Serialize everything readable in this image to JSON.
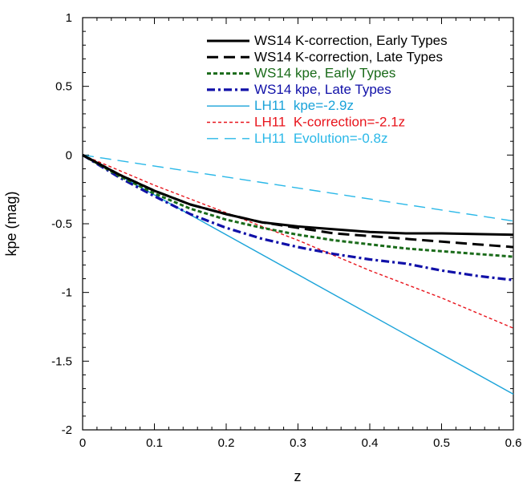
{
  "chart_data": {
    "type": "line",
    "title": "",
    "xlabel": "z",
    "ylabel": "kpe (mag)",
    "xlim": [
      0,
      0.6
    ],
    "ylim": [
      -2,
      1
    ],
    "xticks": [
      0,
      0.1,
      0.2,
      0.3,
      0.4,
      0.5,
      0.6
    ],
    "xtick_labels": [
      "0",
      "0.1",
      "0.2",
      "0.3",
      "0.4",
      "0.5",
      "0.6"
    ],
    "yticks": [
      1,
      0.5,
      0,
      -0.5,
      -1,
      -1.5,
      -2
    ],
    "ytick_labels": [
      "1",
      "0.5",
      "0",
      "-0.5",
      "-1",
      "-1.5",
      "-2"
    ],
    "grid": false,
    "legend_position": "top-right",
    "series": [
      {
        "name": "WS14 K-correction, Early Types",
        "legend_label": "WS14 K-correction, Early Types",
        "color": "#000000",
        "style": "solid-thick",
        "x": [
          0,
          0.05,
          0.1,
          0.15,
          0.2,
          0.25,
          0.3,
          0.35,
          0.4,
          0.45,
          0.5,
          0.55,
          0.6
        ],
        "y": [
          0,
          -0.14,
          -0.26,
          -0.36,
          -0.43,
          -0.49,
          -0.52,
          -0.54,
          -0.56,
          -0.57,
          -0.57,
          -0.575,
          -0.58
        ]
      },
      {
        "name": "WS14 K-correction, Late Types",
        "legend_label": "WS14 K-correction, Late Types",
        "color": "#000000",
        "style": "dashed",
        "x": [
          0,
          0.05,
          0.1,
          0.15,
          0.2,
          0.25,
          0.3,
          0.35,
          0.4,
          0.45,
          0.5,
          0.55,
          0.6
        ],
        "y": [
          0,
          -0.14,
          -0.26,
          -0.36,
          -0.43,
          -0.49,
          -0.53,
          -0.57,
          -0.59,
          -0.61,
          -0.63,
          -0.65,
          -0.67
        ]
      },
      {
        "name": "WS14 kpe, Early Types",
        "legend_label": "WS14 kpe, Early Types",
        "color": "#1a6b1a",
        "style": "dotted-thick",
        "x": [
          0,
          0.05,
          0.1,
          0.15,
          0.2,
          0.25,
          0.3,
          0.35,
          0.4,
          0.45,
          0.5,
          0.55,
          0.6
        ],
        "y": [
          0,
          -0.15,
          -0.28,
          -0.39,
          -0.47,
          -0.53,
          -0.58,
          -0.62,
          -0.65,
          -0.68,
          -0.7,
          -0.72,
          -0.74
        ]
      },
      {
        "name": "WS14 kpe, Late Types",
        "legend_label": "WS14 kpe, Late Types",
        "color": "#1010a8",
        "style": "dashdot",
        "x": [
          0,
          0.05,
          0.1,
          0.15,
          0.2,
          0.25,
          0.3,
          0.35,
          0.4,
          0.45,
          0.5,
          0.55,
          0.6
        ],
        "y": [
          0,
          -0.16,
          -0.3,
          -0.43,
          -0.53,
          -0.61,
          -0.67,
          -0.72,
          -0.76,
          -0.79,
          -0.84,
          -0.88,
          -0.91
        ]
      },
      {
        "name": "LH11 kpe=-2.9z",
        "legend_label": "LH11  kpe=-2.9z",
        "color": "#1aa3d9",
        "style": "solid-thin",
        "x": [
          0,
          0.6
        ],
        "y": [
          0,
          -1.74
        ]
      },
      {
        "name": "LH11 K-correction=-2.1z",
        "legend_label": "LH11  K-correction=-2.1z",
        "color": "#e8141c",
        "style": "dotted-thin",
        "x": [
          0,
          0.1,
          0.2,
          0.3,
          0.4,
          0.5,
          0.6
        ],
        "y": [
          0,
          -0.22,
          -0.42,
          -0.62,
          -0.84,
          -1.04,
          -1.26
        ]
      },
      {
        "name": "LH11 Evolution=-0.8z",
        "legend_label": "LH11  Evolution=-0.8z",
        "color": "#2ab8e8",
        "style": "dashed-thin",
        "x": [
          0,
          0.6
        ],
        "y": [
          0,
          -0.48
        ]
      }
    ]
  }
}
